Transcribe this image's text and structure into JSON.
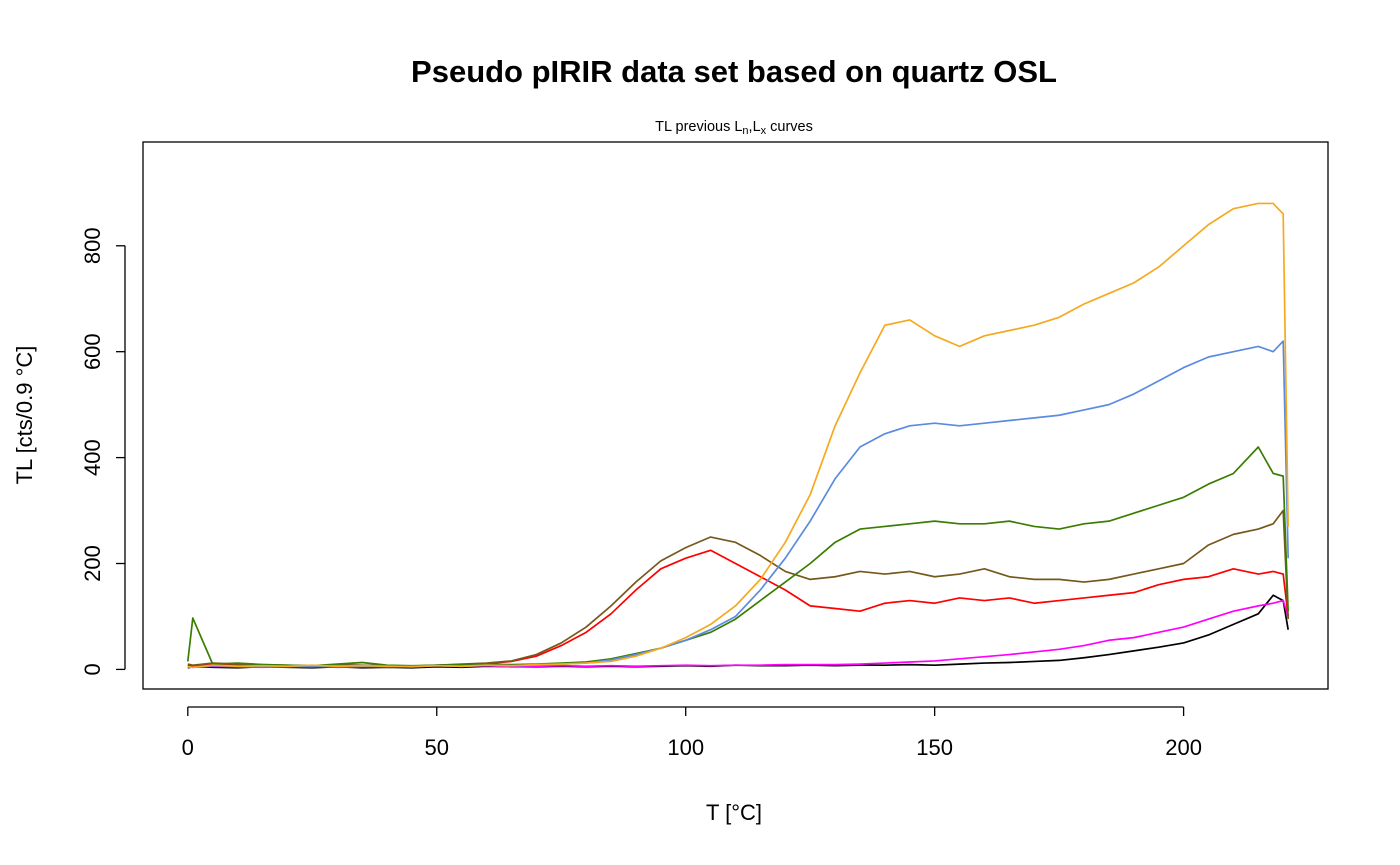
{
  "chart_data": {
    "type": "line",
    "title": "Pseudo pIRIR data set based on quartz OSL",
    "subtitle": {
      "prefix": "TL previous L",
      "sub1": "n",
      "mid": ",L",
      "sub2": "x",
      "suffix": " curves"
    },
    "xlabel": "T [°C]",
    "ylabel": "TL [cts/0.9 °C]",
    "xlim": [
      -9,
      229
    ],
    "ylim": [
      -37,
      996
    ],
    "xticks": [
      0,
      50,
      100,
      150,
      200
    ],
    "yticks": [
      0,
      200,
      400,
      600,
      800
    ],
    "grid": false,
    "legend": "none",
    "x": [
      0,
      1,
      5,
      10,
      15,
      20,
      25,
      30,
      35,
      40,
      45,
      50,
      55,
      60,
      65,
      70,
      75,
      80,
      85,
      90,
      95,
      100,
      105,
      110,
      115,
      120,
      125,
      130,
      135,
      140,
      145,
      150,
      155,
      160,
      165,
      170,
      175,
      180,
      185,
      190,
      195,
      200,
      205,
      210,
      215,
      218,
      220,
      221
    ],
    "series": [
      {
        "color": "#000000",
        "values": [
          3,
          5,
          4,
          3,
          5,
          4,
          3,
          5,
          3,
          4,
          3,
          5,
          4,
          6,
          5,
          5,
          6,
          5,
          6,
          5,
          6,
          7,
          6,
          8,
          7,
          7,
          8,
          7,
          8,
          8,
          9,
          8,
          10,
          12,
          13,
          15,
          17,
          22,
          28,
          35,
          42,
          50,
          65,
          85,
          105,
          140,
          130,
          75
        ]
      },
      {
        "color": "#ff00ff",
        "values": [
          5,
          4,
          6,
          5,
          4,
          5,
          6,
          4,
          5,
          6,
          5,
          7,
          6,
          7,
          5,
          6,
          7,
          6,
          7,
          6,
          7,
          8,
          7,
          8,
          8,
          9,
          9,
          9,
          10,
          12,
          14,
          16,
          20,
          24,
          28,
          33,
          38,
          45,
          55,
          60,
          70,
          80,
          95,
          110,
          120,
          125,
          130,
          100
        ]
      },
      {
        "color": "#ff0000",
        "values": [
          8,
          5,
          10,
          9,
          8,
          7,
          6,
          7,
          6,
          7,
          6,
          8,
          9,
          11,
          15,
          25,
          45,
          70,
          105,
          150,
          190,
          210,
          225,
          200,
          175,
          150,
          120,
          115,
          110,
          125,
          130,
          125,
          135,
          130,
          135,
          125,
          130,
          135,
          140,
          145,
          160,
          170,
          175,
          190,
          180,
          185,
          180,
          100
        ]
      },
      {
        "color": "#77581c",
        "values": [
          10,
          8,
          12,
          10,
          9,
          8,
          7,
          9,
          8,
          7,
          6,
          8,
          10,
          12,
          16,
          28,
          50,
          80,
          120,
          165,
          205,
          230,
          250,
          240,
          215,
          185,
          170,
          175,
          185,
          180,
          185,
          175,
          180,
          190,
          175,
          170,
          170,
          165,
          170,
          180,
          190,
          200,
          235,
          255,
          265,
          275,
          300,
          95
        ]
      },
      {
        "color": "#3a7d00",
        "values": [
          15,
          97,
          10,
          12,
          9,
          8,
          7,
          10,
          13,
          8,
          7,
          8,
          9,
          10,
          9,
          10,
          12,
          14,
          20,
          30,
          40,
          55,
          70,
          95,
          130,
          165,
          200,
          240,
          265,
          270,
          275,
          280,
          275,
          275,
          280,
          270,
          265,
          275,
          280,
          295,
          310,
          325,
          350,
          370,
          420,
          370,
          365,
          110
        ]
      },
      {
        "color": "#5b8be0",
        "values": [
          5,
          4,
          7,
          6,
          5,
          6,
          5,
          7,
          6,
          5,
          6,
          7,
          6,
          8,
          7,
          8,
          10,
          12,
          18,
          28,
          40,
          55,
          75,
          100,
          150,
          210,
          280,
          360,
          420,
          445,
          460,
          465,
          460,
          465,
          470,
          475,
          480,
          490,
          500,
          520,
          545,
          570,
          590,
          600,
          610,
          600,
          620,
          210
        ]
      },
      {
        "color": "#f6a91e",
        "values": [
          5,
          4,
          8,
          6,
          7,
          6,
          8,
          6,
          7,
          6,
          5,
          7,
          6,
          8,
          7,
          9,
          10,
          12,
          15,
          25,
          40,
          60,
          85,
          120,
          170,
          240,
          330,
          460,
          560,
          650,
          660,
          630,
          610,
          630,
          640,
          650,
          665,
          690,
          710,
          730,
          760,
          800,
          840,
          870,
          880,
          880,
          860,
          270
        ]
      }
    ]
  }
}
